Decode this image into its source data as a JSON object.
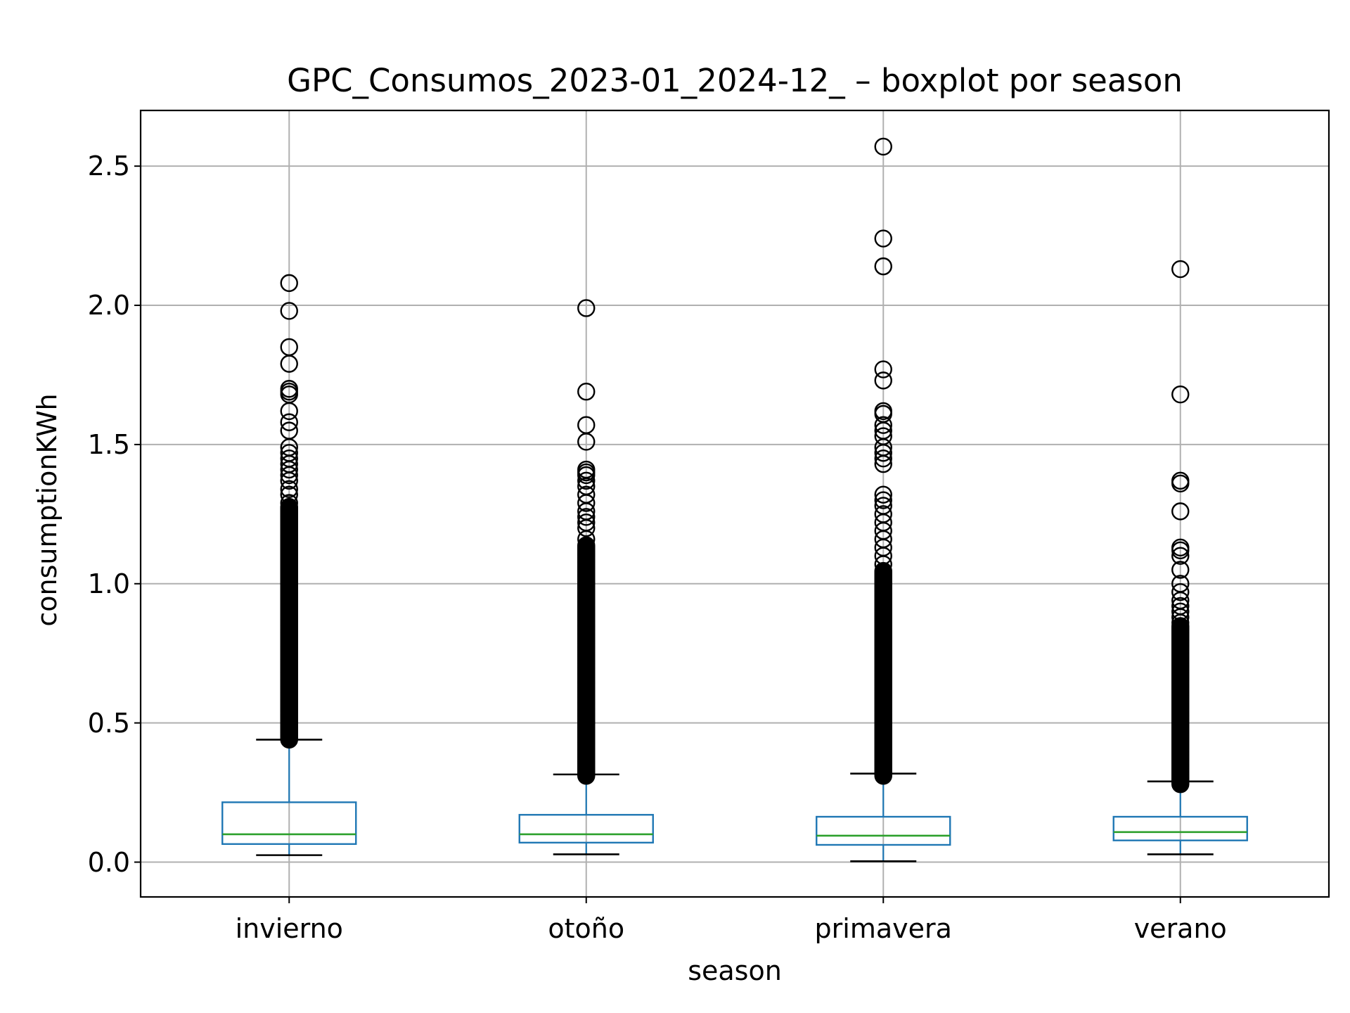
{
  "chart_data": {
    "type": "boxplot",
    "title": "GPC_Consumos_2023-01_2024-12_ – boxplot por season",
    "xlabel": "season",
    "ylabel": "consumptionKWh",
    "ylim": [
      -0.125,
      2.7
    ],
    "yticks": [
      "0.0",
      "0.5",
      "1.0",
      "1.5",
      "2.0",
      "2.5"
    ],
    "grid": true,
    "colors": {
      "box": "#1f77b4",
      "median": "#2ca02c",
      "grid": "#b0b0b0",
      "flier": "#000000"
    },
    "categories": [
      "invierno",
      "otoño",
      "primavera",
      "verano"
    ],
    "boxes": [
      {
        "name": "invierno",
        "whislo": 0.025,
        "q1": 0.065,
        "med": 0.1,
        "q3": 0.215,
        "whishi": 0.44,
        "fliers": [
          2.08,
          1.98,
          1.85,
          1.79,
          1.7,
          1.69,
          1.68,
          1.62,
          1.58,
          1.55,
          1.49,
          1.47,
          1.45,
          1.43,
          1.41,
          1.39,
          1.37,
          1.34,
          1.32,
          1.29
        ],
        "flier_dense_range": [
          0.44,
          1.28
        ]
      },
      {
        "name": "otoño",
        "whislo": 0.028,
        "q1": 0.07,
        "med": 0.1,
        "q3": 0.17,
        "whishi": 0.315,
        "fliers": [
          1.99,
          1.69,
          1.57,
          1.51,
          1.41,
          1.4,
          1.39,
          1.37,
          1.35,
          1.32,
          1.29,
          1.26,
          1.24,
          1.22,
          1.2,
          1.16
        ],
        "flier_dense_range": [
          0.31,
          1.14
        ]
      },
      {
        "name": "primavera",
        "whislo": 0.003,
        "q1": 0.062,
        "med": 0.095,
        "q3": 0.163,
        "whishi": 0.318,
        "fliers": [
          2.57,
          2.24,
          2.14,
          1.77,
          1.73,
          1.62,
          1.61,
          1.57,
          1.55,
          1.53,
          1.49,
          1.47,
          1.45,
          1.43,
          1.32,
          1.3,
          1.28,
          1.25,
          1.22,
          1.19,
          1.16,
          1.13,
          1.1,
          1.07
        ],
        "flier_dense_range": [
          0.31,
          1.05
        ]
      },
      {
        "name": "verano",
        "whislo": 0.028,
        "q1": 0.078,
        "med": 0.108,
        "q3": 0.163,
        "whishi": 0.29,
        "fliers": [
          2.13,
          1.68,
          1.37,
          1.36,
          1.26,
          1.13,
          1.12,
          1.1,
          1.05,
          1.0,
          0.97,
          0.94,
          0.92,
          0.9,
          0.88,
          0.86
        ],
        "flier_dense_range": [
          0.28,
          0.85
        ]
      }
    ]
  }
}
